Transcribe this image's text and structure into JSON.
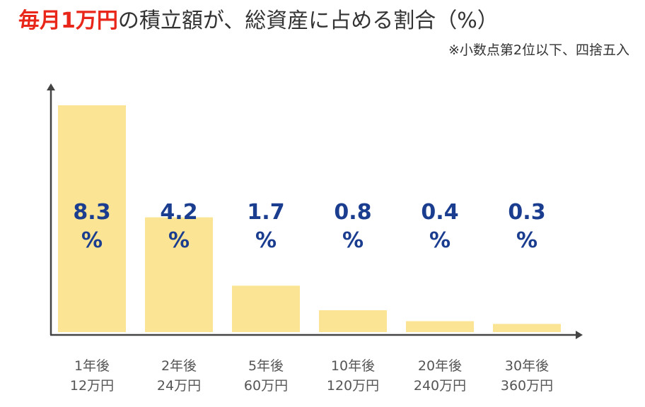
{
  "header": {
    "title_highlight": "毎月1万円",
    "title_rest": "の積立額が、総資産に占める割合（%）",
    "note": "※小数点第2位以下、四捨五入"
  },
  "chart_data": {
    "type": "bar",
    "title": "毎月1万円の積立額が、総資産に占める割合（%）",
    "xlabel": "",
    "ylabel": "",
    "unit": "%",
    "ylim": [
      0,
      8.8
    ],
    "categories": [
      [
        "1年後",
        "12万円"
      ],
      [
        "2年後",
        "24万円"
      ],
      [
        "5年後",
        "60万円"
      ],
      [
        "10年後",
        "120万円"
      ],
      [
        "20年後",
        "240万円"
      ],
      [
        "30年後",
        "360万円"
      ]
    ],
    "values": [
      8.3,
      4.2,
      1.7,
      0.8,
      0.4,
      0.3
    ],
    "value_labels": [
      "8.3",
      "4.2",
      "1.7",
      "0.8",
      "0.4",
      "0.3"
    ],
    "grid": false,
    "colors": {
      "bar": "#fbe594",
      "label": "#1a3d8f",
      "axis": "#444444",
      "highlight": "#e8271a"
    }
  }
}
